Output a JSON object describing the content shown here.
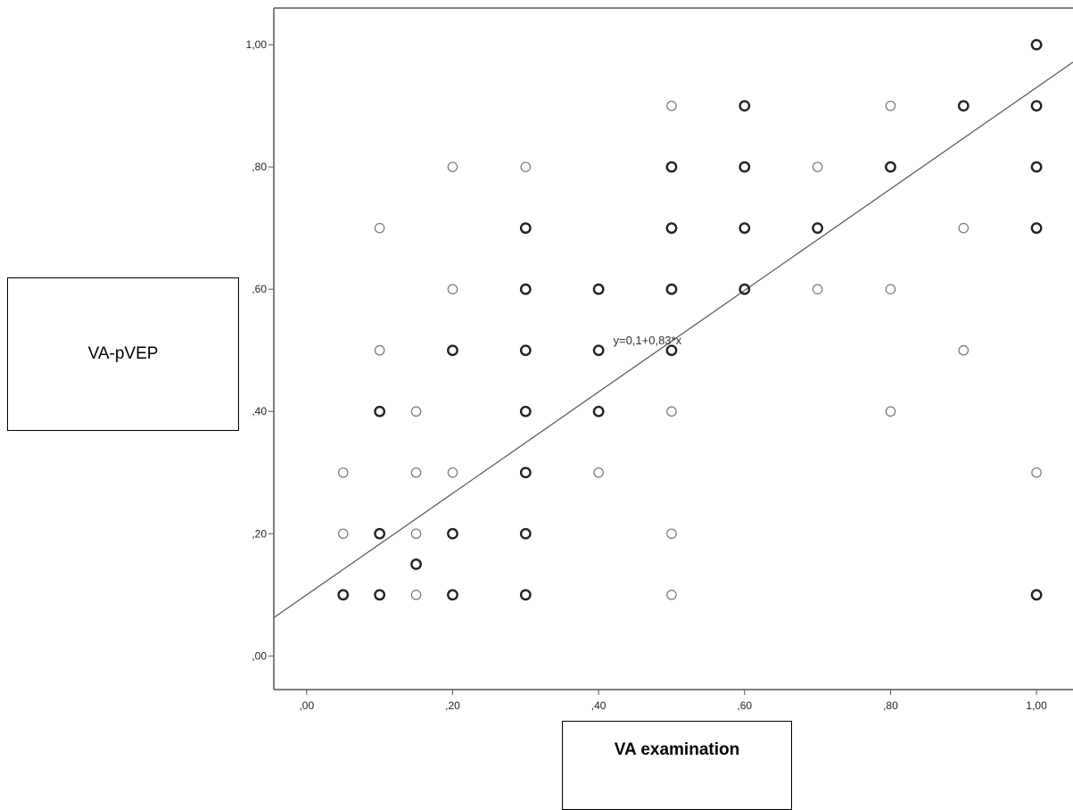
{
  "colors": {
    "axis": "#555555",
    "marker": "#444444",
    "fit_line": "#555555",
    "text": "#222222"
  },
  "chart_data": {
    "type": "scatter",
    "xlabel": "VA examination",
    "ylabel": "VA-pVEP",
    "xlim": [
      -0.045,
      1.05
    ],
    "ylim": [
      -0.055,
      1.06
    ],
    "x_ticks": [
      {
        "value": 0.0,
        "label": ",00"
      },
      {
        "value": 0.2,
        "label": ",20"
      },
      {
        "value": 0.4,
        "label": ",40"
      },
      {
        "value": 0.6,
        "label": ",60"
      },
      {
        "value": 0.8,
        "label": ",80"
      },
      {
        "value": 1.0,
        "label": "1,00"
      }
    ],
    "y_ticks": [
      {
        "value": 0.0,
        "label": ",00"
      },
      {
        "value": 0.2,
        "label": ",20"
      },
      {
        "value": 0.4,
        "label": ",40"
      },
      {
        "value": 0.6,
        "label": ",60"
      },
      {
        "value": 0.8,
        "label": ",80"
      },
      {
        "value": 1.0,
        "label": "1,00"
      }
    ],
    "grid": false,
    "marker": "open-circle",
    "points": [
      {
        "x": 0.05,
        "y": 0.3,
        "multiple": false
      },
      {
        "x": 0.05,
        "y": 0.2,
        "multiple": false
      },
      {
        "x": 0.05,
        "y": 0.1,
        "multiple": true
      },
      {
        "x": 0.1,
        "y": 0.7,
        "multiple": false
      },
      {
        "x": 0.1,
        "y": 0.5,
        "multiple": false
      },
      {
        "x": 0.1,
        "y": 0.4,
        "multiple": true
      },
      {
        "x": 0.1,
        "y": 0.2,
        "multiple": true
      },
      {
        "x": 0.1,
        "y": 0.1,
        "multiple": true
      },
      {
        "x": 0.15,
        "y": 0.4,
        "multiple": false
      },
      {
        "x": 0.15,
        "y": 0.3,
        "multiple": false
      },
      {
        "x": 0.15,
        "y": 0.2,
        "multiple": false
      },
      {
        "x": 0.15,
        "y": 0.15,
        "multiple": true
      },
      {
        "x": 0.15,
        "y": 0.1,
        "multiple": false
      },
      {
        "x": 0.2,
        "y": 0.8,
        "multiple": false
      },
      {
        "x": 0.2,
        "y": 0.6,
        "multiple": false
      },
      {
        "x": 0.2,
        "y": 0.5,
        "multiple": true
      },
      {
        "x": 0.2,
        "y": 0.3,
        "multiple": false
      },
      {
        "x": 0.2,
        "y": 0.2,
        "multiple": true
      },
      {
        "x": 0.2,
        "y": 0.1,
        "multiple": true
      },
      {
        "x": 0.3,
        "y": 0.8,
        "multiple": false
      },
      {
        "x": 0.3,
        "y": 0.7,
        "multiple": true
      },
      {
        "x": 0.3,
        "y": 0.6,
        "multiple": true
      },
      {
        "x": 0.3,
        "y": 0.5,
        "multiple": true
      },
      {
        "x": 0.3,
        "y": 0.4,
        "multiple": true
      },
      {
        "x": 0.3,
        "y": 0.3,
        "multiple": true
      },
      {
        "x": 0.3,
        "y": 0.2,
        "multiple": true
      },
      {
        "x": 0.3,
        "y": 0.1,
        "multiple": true
      },
      {
        "x": 0.4,
        "y": 0.6,
        "multiple": true
      },
      {
        "x": 0.4,
        "y": 0.5,
        "multiple": true
      },
      {
        "x": 0.4,
        "y": 0.4,
        "multiple": true
      },
      {
        "x": 0.4,
        "y": 0.3,
        "multiple": false
      },
      {
        "x": 0.5,
        "y": 0.9,
        "multiple": false
      },
      {
        "x": 0.5,
        "y": 0.8,
        "multiple": true
      },
      {
        "x": 0.5,
        "y": 0.7,
        "multiple": true
      },
      {
        "x": 0.5,
        "y": 0.6,
        "multiple": true
      },
      {
        "x": 0.5,
        "y": 0.5,
        "multiple": true
      },
      {
        "x": 0.5,
        "y": 0.4,
        "multiple": false
      },
      {
        "x": 0.5,
        "y": 0.2,
        "multiple": false
      },
      {
        "x": 0.5,
        "y": 0.1,
        "multiple": false
      },
      {
        "x": 0.6,
        "y": 0.9,
        "multiple": true
      },
      {
        "x": 0.6,
        "y": 0.8,
        "multiple": true
      },
      {
        "x": 0.6,
        "y": 0.7,
        "multiple": true
      },
      {
        "x": 0.6,
        "y": 0.6,
        "multiple": true
      },
      {
        "x": 0.7,
        "y": 0.8,
        "multiple": false
      },
      {
        "x": 0.7,
        "y": 0.7,
        "multiple": true
      },
      {
        "x": 0.7,
        "y": 0.6,
        "multiple": false
      },
      {
        "x": 0.8,
        "y": 0.9,
        "multiple": false
      },
      {
        "x": 0.8,
        "y": 0.8,
        "multiple": true
      },
      {
        "x": 0.8,
        "y": 0.6,
        "multiple": false
      },
      {
        "x": 0.8,
        "y": 0.4,
        "multiple": false
      },
      {
        "x": 0.9,
        "y": 0.9,
        "multiple": true
      },
      {
        "x": 0.9,
        "y": 0.7,
        "multiple": false
      },
      {
        "x": 0.9,
        "y": 0.5,
        "multiple": false
      },
      {
        "x": 1.0,
        "y": 1.0,
        "multiple": true
      },
      {
        "x": 1.0,
        "y": 0.9,
        "multiple": true
      },
      {
        "x": 1.0,
        "y": 0.8,
        "multiple": true
      },
      {
        "x": 1.0,
        "y": 0.7,
        "multiple": true
      },
      {
        "x": 1.0,
        "y": 0.3,
        "multiple": false
      },
      {
        "x": 1.0,
        "y": 0.1,
        "multiple": true
      }
    ],
    "fit_line": {
      "intercept": 0.1,
      "slope": 0.83,
      "label": "y=0,1+0,83*x",
      "label_at": [
        0.42,
        0.51
      ]
    }
  }
}
